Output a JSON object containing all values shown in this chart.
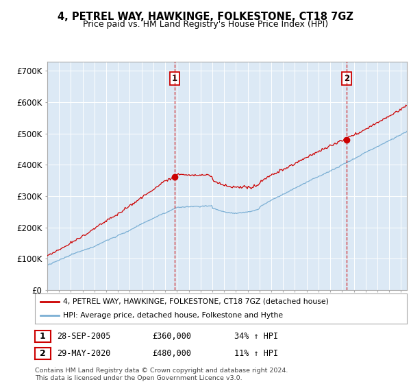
{
  "title1": "4, PETREL WAY, HAWKINGE, FOLKESTONE, CT18 7GZ",
  "title2": "Price paid vs. HM Land Registry's House Price Index (HPI)",
  "yticks": [
    0,
    100000,
    200000,
    300000,
    400000,
    500000,
    600000,
    700000
  ],
  "ytick_labels": [
    "£0",
    "£100K",
    "£200K",
    "£300K",
    "£400K",
    "£500K",
    "£600K",
    "£700K"
  ],
  "xmin": 1995.0,
  "xmax": 2025.5,
  "ymin": 0,
  "ymax": 730000,
  "hpi_color": "#7bafd4",
  "price_color": "#cc0000",
  "bg_color": "#dce9f5",
  "marker1_x": 2005.74,
  "marker1_y": 360000,
  "marker2_x": 2020.41,
  "marker2_y": 480000,
  "legend_line1": "4, PETREL WAY, HAWKINGE, FOLKESTONE, CT18 7GZ (detached house)",
  "legend_line2": "HPI: Average price, detached house, Folkestone and Hythe",
  "table_row1": [
    "1",
    "28-SEP-2005",
    "£360,000",
    "34% ↑ HPI"
  ],
  "table_row2": [
    "2",
    "29-MAY-2020",
    "£480,000",
    "11% ↑ HPI"
  ],
  "footer": "Contains HM Land Registry data © Crown copyright and database right 2024.\nThis data is licensed under the Open Government Licence v3.0."
}
